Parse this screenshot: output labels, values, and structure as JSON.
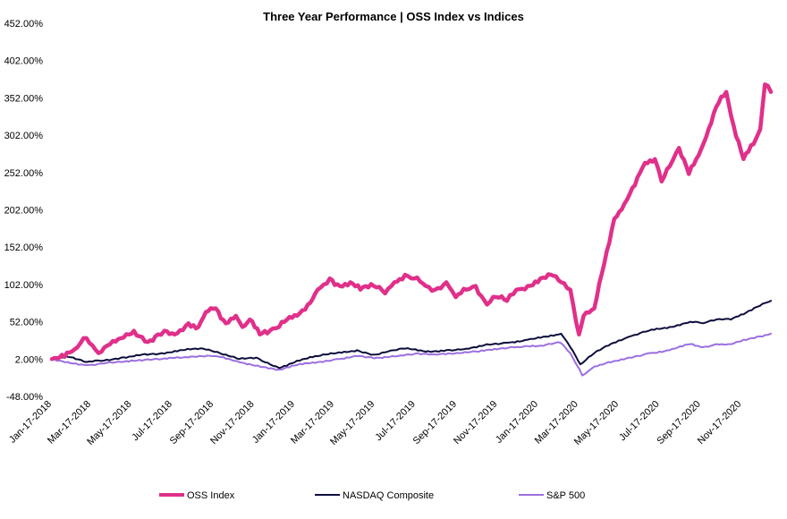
{
  "chart_data": {
    "type": "line",
    "title": "Three Year Performance | OSS Index vs Indices",
    "xlabel": "",
    "ylabel": "",
    "ylim": [
      -48,
      452
    ],
    "y_ticks": [
      "452.00%",
      "402.00%",
      "352.00%",
      "302.00%",
      "252.00%",
      "202.00%",
      "152.00%",
      "102.00%",
      "52.00%",
      "2.00%",
      "-48.00%"
    ],
    "x_range": [
      "Jan-17-2018",
      "Dec-31-2020"
    ],
    "x_ticks": [
      "Jan-17-2018",
      "Mar-17-2018",
      "May-17-2018",
      "Jul-17-2018",
      "Sep-17-2018",
      "Nov-17-2018",
      "Jan-17-2019",
      "Mar-17-2019",
      "May-17-2019",
      "Jul-17-2019",
      "Sep-17-2019",
      "Nov-17-2019",
      "Jan-17-2020",
      "Mar-17-2020",
      "May-17-2020",
      "Jul-17-2020",
      "Sep-17-2020",
      "Nov-17-2020"
    ],
    "legend_position": "bottom",
    "grid": false,
    "series": [
      {
        "name": "OSS Index",
        "color": "#e0308a",
        "x": [
          "Jan-17-2018",
          "Feb-05-2018",
          "Feb-20-2018",
          "Mar-10-2018",
          "Mar-28-2018",
          "Apr-10-2018",
          "May-01-2018",
          "May-20-2018",
          "Jun-10-2018",
          "Jun-25-2018",
          "Jul-05-2018",
          "Jul-20-2018",
          "Aug-10-2018",
          "Aug-25-2018",
          "Sep-05-2018",
          "Sep-20-2018",
          "Oct-05-2018",
          "Oct-20-2018",
          "Oct-30-2018",
          "Nov-10-2018",
          "Nov-25-2018",
          "Dec-10-2018",
          "Dec-24-2018",
          "Jan-05-2019",
          "Jan-20-2019",
          "Feb-05-2019",
          "Feb-20-2019",
          "Mar-10-2019",
          "Mar-25-2019",
          "Apr-10-2019",
          "Apr-25-2019",
          "May-15-2019",
          "Jun-01-2019",
          "Jun-15-2019",
          "Jul-01-2019",
          "Jul-15-2019",
          "Aug-01-2019",
          "Aug-15-2019",
          "Sep-01-2019",
          "Sep-15-2019",
          "Oct-01-2019",
          "Oct-15-2019",
          "Nov-01-2019",
          "Nov-15-2019",
          "Dec-01-2019",
          "Dec-15-2019",
          "Jan-01-2020",
          "Jan-20-2020",
          "Feb-05-2020",
          "Feb-20-2020",
          "Mar-05-2020",
          "Mar-18-2020",
          "Mar-25-2020",
          "Apr-10-2020",
          "Apr-25-2020",
          "May-10-2020",
          "May-25-2020",
          "Jun-10-2020",
          "Jun-25-2020",
          "Jul-10-2020",
          "Jul-20-2020",
          "Aug-01-2020",
          "Aug-15-2020",
          "Aug-30-2020",
          "Sep-10-2020",
          "Sep-25-2020",
          "Oct-10-2020",
          "Oct-25-2020",
          "Nov-05-2020",
          "Nov-20-2020",
          "Dec-05-2020",
          "Dec-15-2020",
          "Dec-22-2020",
          "Dec-31-2020"
        ],
        "values": [
          2,
          5,
          15,
          30,
          10,
          20,
          30,
          40,
          25,
          35,
          40,
          35,
          50,
          45,
          65,
          70,
          50,
          60,
          45,
          55,
          35,
          40,
          45,
          55,
          60,
          75,
          95,
          110,
          100,
          105,
          95,
          100,
          90,
          105,
          115,
          110,
          100,
          95,
          105,
          85,
          95,
          100,
          75,
          85,
          80,
          95,
          100,
          110,
          115,
          105,
          95,
          35,
          60,
          70,
          130,
          190,
          210,
          235,
          265,
          270,
          240,
          260,
          285,
          250,
          270,
          300,
          340,
          360,
          315,
          270,
          290,
          310,
          370,
          360
        ]
      },
      {
        "name": "NASDAQ Composite",
        "color": "#0d0d3d",
        "x": [
          "Jan-17-2018",
          "Feb-10-2018",
          "Mar-10-2018",
          "Apr-05-2018",
          "May-01-2018",
          "Jun-01-2018",
          "Jul-01-2018",
          "Aug-01-2018",
          "Sep-01-2018",
          "Oct-01-2018",
          "Oct-25-2018",
          "Nov-20-2018",
          "Dec-24-2018",
          "Jan-20-2019",
          "Feb-20-2019",
          "Mar-20-2019",
          "Apr-20-2019",
          "May-15-2019",
          "Jun-05-2019",
          "Jul-01-2019",
          "Aug-01-2019",
          "Sep-01-2019",
          "Oct-01-2019",
          "Nov-01-2019",
          "Dec-01-2019",
          "Jan-01-2020",
          "Feb-01-2020",
          "Feb-20-2020",
          "Mar-05-2020",
          "Mar-20-2020",
          "Apr-10-2020",
          "May-01-2020",
          "Jun-01-2020",
          "Jul-01-2020",
          "Aug-01-2020",
          "Sep-01-2020",
          "Sep-20-2020",
          "Oct-10-2020",
          "Nov-01-2020",
          "Nov-20-2020",
          "Dec-10-2020",
          "Dec-31-2020"
        ],
        "values": [
          2,
          5,
          -2,
          0,
          4,
          8,
          10,
          14,
          16,
          8,
          2,
          4,
          -10,
          0,
          6,
          10,
          14,
          8,
          12,
          16,
          12,
          14,
          16,
          22,
          24,
          28,
          32,
          36,
          18,
          -5,
          10,
          20,
          32,
          40,
          45,
          52,
          50,
          55,
          55,
          62,
          72,
          80
        ]
      },
      {
        "name": "S&P 500",
        "color": "#9b6fe0",
        "x": [
          "Jan-17-2018",
          "Feb-10-2018",
          "Mar-10-2018",
          "Apr-05-2018",
          "May-01-2018",
          "Jun-01-2018",
          "Jul-01-2018",
          "Aug-01-2018",
          "Sep-20-2018",
          "Oct-25-2018",
          "Dec-24-2018",
          "Jan-20-2019",
          "Feb-20-2019",
          "Mar-20-2019",
          "Apr-20-2019",
          "May-20-2019",
          "Jun-20-2019",
          "Jul-20-2019",
          "Aug-15-2019",
          "Sep-20-2019",
          "Oct-20-2019",
          "Nov-20-2019",
          "Dec-20-2019",
          "Jan-20-2020",
          "Feb-19-2020",
          "Mar-05-2020",
          "Mar-23-2020",
          "Apr-10-2020",
          "May-01-2020",
          "Jun-01-2020",
          "Jul-01-2020",
          "Aug-01-2020",
          "Sep-01-2020",
          "Sep-20-2020",
          "Oct-10-2020",
          "Nov-01-2020",
          "Nov-20-2020",
          "Dec-10-2020",
          "Dec-31-2020"
        ],
        "values": [
          2,
          -2,
          -6,
          -4,
          -2,
          0,
          2,
          4,
          6,
          -2,
          -12,
          -6,
          -2,
          2,
          6,
          4,
          6,
          10,
          8,
          10,
          12,
          16,
          18,
          20,
          24,
          10,
          -20,
          -8,
          -2,
          4,
          10,
          14,
          22,
          18,
          22,
          22,
          28,
          32,
          36
        ]
      }
    ]
  }
}
